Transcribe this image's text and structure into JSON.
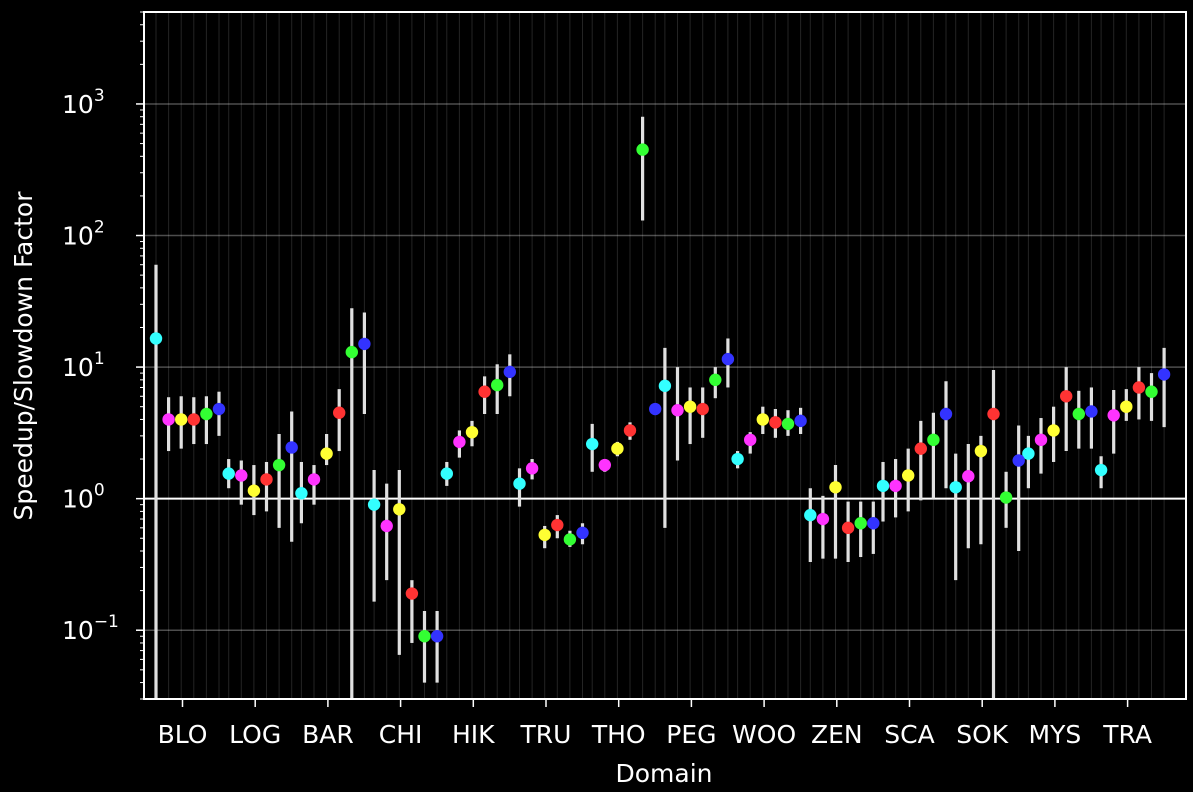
{
  "chart_data": {
    "type": "scatter",
    "xlabel": "Domain",
    "ylabel": "Speedup/Slowdown Factor",
    "yscale": "log",
    "ylim": [
      0.03,
      5000
    ],
    "y_ticks": [
      {
        "value": 0.1,
        "base": "10",
        "exp": "−1"
      },
      {
        "value": 1,
        "base": "10",
        "exp": "0"
      },
      {
        "value": 10,
        "base": "10",
        "exp": "1"
      },
      {
        "value": 100,
        "base": "10",
        "exp": "2"
      },
      {
        "value": 1000,
        "base": "10",
        "exp": "3"
      }
    ],
    "grid": true,
    "reference_line": 1,
    "categories": [
      "BLO",
      "LOG",
      "BAR",
      "CHI",
      "HIK",
      "TRU",
      "THO",
      "PEG",
      "WOO",
      "ZEN",
      "SCA",
      "SOK",
      "MYS",
      "TRA"
    ],
    "colors": {
      "background": "#000000",
      "axes": "#ffffff",
      "error_bar": "#e0e0e0",
      "series": [
        "#33ffff",
        "#ff33ff",
        "#ffff33",
        "#ff3333",
        "#33ff33",
        "#3333ff"
      ]
    },
    "series": [
      {
        "values": [
          16.5,
          1.55,
          1.1,
          0.9,
          1.55,
          1.3,
          2.6,
          7.2,
          2.0,
          0.75,
          1.25,
          1.22,
          2.2,
          1.65
        ],
        "low": [
          0.03,
          1.2,
          0.65,
          0.165,
          1.25,
          0.87,
          1.6,
          0.6,
          1.7,
          0.33,
          0.67,
          0.24,
          1.2,
          1.2
        ],
        "high": [
          60,
          2.0,
          1.9,
          1.65,
          1.9,
          1.7,
          3.7,
          14.0,
          2.3,
          1.2,
          1.9,
          2.2,
          3.0,
          2.1
        ]
      },
      {
        "values": [
          4.0,
          1.5,
          1.4,
          0.62,
          2.7,
          1.7,
          1.8,
          4.7,
          2.8,
          0.7,
          1.25,
          1.48,
          2.8,
          4.3
        ],
        "low": [
          2.3,
          0.9,
          0.9,
          0.24,
          2.05,
          1.4,
          1.6,
          1.95,
          2.2,
          0.35,
          0.72,
          0.42,
          1.55,
          2.2
        ],
        "high": [
          5.9,
          1.95,
          1.8,
          1.3,
          3.3,
          2.0,
          2.0,
          10.0,
          3.2,
          1.05,
          2.0,
          2.6,
          4.1,
          6.7
        ]
      },
      {
        "values": [
          4.0,
          1.15,
          2.2,
          0.83,
          3.2,
          0.53,
          2.4,
          5.0,
          4.0,
          1.22,
          1.5,
          2.3,
          3.3,
          5.0
        ],
        "low": [
          2.4,
          0.75,
          1.8,
          0.065,
          2.5,
          0.42,
          2.1,
          2.6,
          3.1,
          0.35,
          0.8,
          0.45,
          1.9,
          3.9
        ],
        "high": [
          6.0,
          1.8,
          3.1,
          1.65,
          3.9,
          0.62,
          2.7,
          7.0,
          5.0,
          1.8,
          2.4,
          3.0,
          5.0,
          6.8
        ]
      },
      {
        "values": [
          4.0,
          1.4,
          4.5,
          0.19,
          6.5,
          0.63,
          3.3,
          4.8,
          3.8,
          0.6,
          2.4,
          4.4,
          6.0,
          7.0
        ],
        "low": [
          2.6,
          0.8,
          2.3,
          0.08,
          4.4,
          0.5,
          2.8,
          2.9,
          2.9,
          0.33,
          0.97,
          0.03,
          2.3,
          4.0
        ],
        "high": [
          5.9,
          1.9,
          6.8,
          0.24,
          8.5,
          0.75,
          3.8,
          7.0,
          4.8,
          0.95,
          3.9,
          9.5,
          10.0,
          10.0
        ]
      },
      {
        "values": [
          4.4,
          1.8,
          13.0,
          0.09,
          7.3,
          0.49,
          450,
          8.0,
          3.7,
          0.65,
          2.8,
          1.02,
          4.4,
          6.5
        ],
        "low": [
          2.6,
          0.6,
          0.03,
          0.04,
          4.4,
          0.43,
          130,
          5.8,
          3.0,
          0.36,
          1.0,
          0.6,
          2.4,
          3.9
        ],
        "high": [
          6.0,
          3.1,
          28.0,
          0.14,
          10.5,
          0.57,
          800,
          10.0,
          4.7,
          0.95,
          4.5,
          1.6,
          6.6,
          9.0
        ]
      },
      {
        "values": [
          4.8,
          2.45,
          15.0,
          0.09,
          9.2,
          0.55,
          4.8,
          11.5,
          3.9,
          0.65,
          4.4,
          1.95,
          4.6,
          8.8
        ],
        "low": [
          3.0,
          0.47,
          4.4,
          0.04,
          6.0,
          0.45,
          4.8,
          7.0,
          3.1,
          0.38,
          1.2,
          0.4,
          2.4,
          3.5
        ],
        "high": [
          6.5,
          4.6,
          26.0,
          0.14,
          12.5,
          0.65,
          4.8,
          16.5,
          4.9,
          0.95,
          7.8,
          3.6,
          7.0,
          14.0
        ]
      }
    ]
  }
}
